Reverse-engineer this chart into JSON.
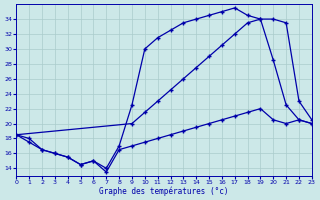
{
  "xlabel": "Graphe des températures (°c)",
  "x_ticks": [
    0,
    1,
    2,
    3,
    4,
    5,
    6,
    7,
    8,
    9,
    10,
    11,
    12,
    13,
    14,
    15,
    16,
    17,
    18,
    19,
    20,
    21,
    22,
    23
  ],
  "xlim": [
    0,
    23
  ],
  "ylim": [
    13,
    36
  ],
  "y_ticks": [
    14,
    16,
    18,
    20,
    22,
    24,
    26,
    28,
    30,
    32,
    34
  ],
  "bg_color": "#cce8e8",
  "grid_color": "#aacccc",
  "line_color": "#0000aa",
  "series": {
    "actual": {
      "x": [
        0,
        1,
        2,
        3,
        4,
        5,
        6,
        7,
        8,
        9,
        10,
        11,
        12,
        13,
        14,
        15,
        16,
        17,
        18,
        19,
        20,
        21,
        22,
        23
      ],
      "y": [
        18.5,
        18.0,
        16.5,
        16.0,
        15.5,
        14.5,
        15.0,
        14.0,
        17.0,
        22.5,
        30.0,
        31.5,
        32.5,
        33.5,
        34.0,
        34.5,
        35.0,
        35.5,
        34.5,
        34.0,
        28.5,
        22.5,
        20.5,
        20.0
      ]
    },
    "max": {
      "x": [
        0,
        9,
        10,
        11,
        12,
        13,
        14,
        15,
        16,
        17,
        18,
        19,
        20,
        21,
        22,
        23
      ],
      "y": [
        18.5,
        20.0,
        21.5,
        23.0,
        24.5,
        26.0,
        27.5,
        29.0,
        30.5,
        32.0,
        33.5,
        34.0,
        34.0,
        33.5,
        23.0,
        20.5
      ]
    },
    "min": {
      "x": [
        0,
        1,
        2,
        3,
        4,
        5,
        6,
        7,
        8,
        9,
        10,
        11,
        12,
        13,
        14,
        15,
        16,
        17,
        18,
        19,
        20,
        21,
        22,
        23
      ],
      "y": [
        18.5,
        17.5,
        16.5,
        16.0,
        15.5,
        14.5,
        15.0,
        13.5,
        16.5,
        17.0,
        17.5,
        18.0,
        18.5,
        19.0,
        19.5,
        20.0,
        20.5,
        21.0,
        21.5,
        22.0,
        20.5,
        20.0,
        20.5,
        20.0
      ]
    }
  },
  "marker": "+",
  "marker_size": 3,
  "line_width": 0.9
}
